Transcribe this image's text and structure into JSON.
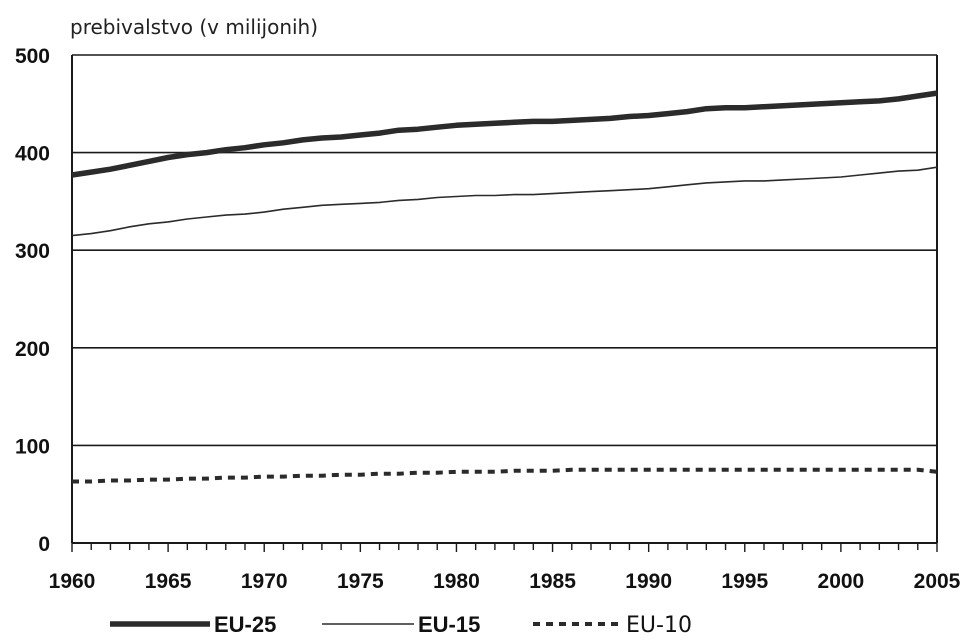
{
  "chart_data": {
    "type": "line",
    "ylabel": "prebivalstvo (v milijonih)",
    "xlabel": "",
    "xlim": [
      1960,
      2005
    ],
    "ylim": [
      0,
      500
    ],
    "x_ticks": [
      1960,
      1965,
      1970,
      1975,
      1980,
      1985,
      1990,
      1995,
      2000,
      2005
    ],
    "y_ticks": [
      0,
      100,
      200,
      300,
      400,
      500
    ],
    "grid": "horizontal",
    "legend_position": "bottom",
    "x": [
      1960,
      1961,
      1962,
      1963,
      1964,
      1965,
      1966,
      1967,
      1968,
      1969,
      1970,
      1971,
      1972,
      1973,
      1974,
      1975,
      1976,
      1977,
      1978,
      1979,
      1980,
      1981,
      1982,
      1983,
      1984,
      1985,
      1986,
      1987,
      1988,
      1989,
      1990,
      1991,
      1992,
      1993,
      1994,
      1995,
      1996,
      1997,
      1998,
      1999,
      2000,
      2001,
      2002,
      2003,
      2004,
      2005
    ],
    "series": [
      {
        "name": "EU-25",
        "style": "thick",
        "color": "#2b2b2b",
        "values": [
          377,
          380,
          383,
          387,
          391,
          395,
          398,
          400,
          403,
          405,
          408,
          410,
          413,
          415,
          416,
          418,
          420,
          423,
          424,
          426,
          428,
          429,
          430,
          431,
          432,
          432,
          433,
          434,
          435,
          437,
          438,
          440,
          442,
          445,
          446,
          446,
          447,
          448,
          449,
          450,
          451,
          452,
          453,
          455,
          458,
          461
        ]
      },
      {
        "name": "EU-15",
        "style": "thin",
        "color": "#2b2b2b",
        "values": [
          315,
          317,
          320,
          324,
          327,
          329,
          332,
          334,
          336,
          337,
          339,
          342,
          344,
          346,
          347,
          348,
          349,
          351,
          352,
          354,
          355,
          356,
          356,
          357,
          357,
          358,
          359,
          360,
          361,
          362,
          363,
          365,
          367,
          369,
          370,
          371,
          371,
          372,
          373,
          374,
          375,
          377,
          379,
          381,
          382,
          385
        ]
      },
      {
        "name": "EU-10",
        "style": "dotted",
        "color": "#2b2b2b",
        "values": [
          63,
          63,
          64,
          64,
          65,
          65,
          66,
          66,
          67,
          67,
          68,
          68,
          69,
          69,
          70,
          70,
          71,
          71,
          72,
          72,
          73,
          73,
          73,
          74,
          74,
          74,
          75,
          75,
          75,
          75,
          75,
          75,
          75,
          75,
          75,
          75,
          75,
          75,
          75,
          75,
          75,
          75,
          75,
          75,
          75,
          73
        ]
      }
    ]
  }
}
